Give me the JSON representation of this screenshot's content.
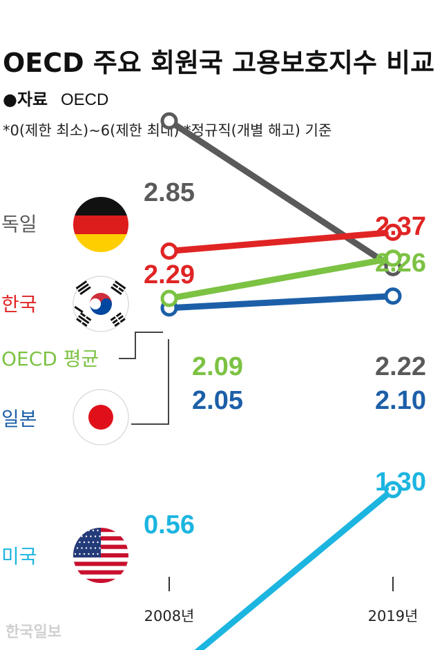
{
  "header": {
    "title": "OECD 주요 회원국 고용보호지수 비교",
    "source_label": "●자료",
    "source_value": "OECD",
    "note": "*0(제한 최소)~6(제한 최대) *정규직(개별 해고) 기준"
  },
  "watermark": "한국일보",
  "chart_data": {
    "type": "line",
    "x": [
      "2008년",
      "2019년"
    ],
    "ylim": [
      0,
      6
    ],
    "series": [
      {
        "name": "독일",
        "values": [
          2.85,
          2.22
        ],
        "labels": [
          "2.85",
          "2.22"
        ],
        "color": "#5a5a5a",
        "flag": "germany-flag-icon"
      },
      {
        "name": "한국",
        "values": [
          2.29,
          2.37
        ],
        "labels": [
          "2.29",
          "2.37"
        ],
        "color": "#e02424",
        "flag": "korea-flag-icon"
      },
      {
        "name": "OECD 평균",
        "values": [
          2.09,
          2.26
        ],
        "labels": [
          "2.09",
          "2.26"
        ],
        "color": "#7cc243",
        "flag": ""
      },
      {
        "name": "일본",
        "values": [
          2.05,
          2.1
        ],
        "labels": [
          "2.05",
          "2.10"
        ],
        "color": "#1c5fa8",
        "flag": "japan-flag-icon"
      },
      {
        "name": "미국",
        "values": [
          0.56,
          1.3
        ],
        "labels": [
          "0.56",
          "1.30"
        ],
        "color": "#1cb5e0",
        "flag": "usa-flag-icon"
      }
    ]
  }
}
